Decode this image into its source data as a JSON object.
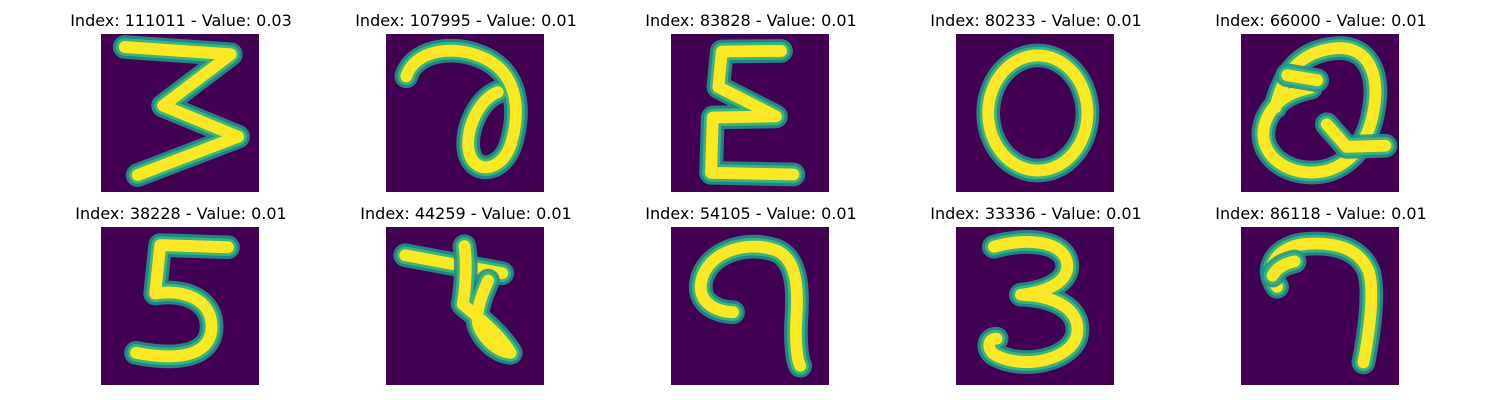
{
  "figure": {
    "background_color": "#440154",
    "stroke_color": "#fde725",
    "edge_color": "#35b779",
    "halo_color": "#21918c",
    "panels": [
      {
        "title": "Index: 111011 - Value: 0.03",
        "digit": "3"
      },
      {
        "title": "Index: 107995 - Value: 0.01",
        "digit": "a"
      },
      {
        "title": "Index: 83828 - Value: 0.01",
        "digit": "E"
      },
      {
        "title": "Index: 80233 - Value: 0.01",
        "digit": "0"
      },
      {
        "title": "Index: 66000 - Value: 0.01",
        "digit": "Q"
      },
      {
        "title": "Index: 38228 - Value: 0.01",
        "digit": "5"
      },
      {
        "title": "Index: 44259 - Value: 0.01",
        "digit": "t"
      },
      {
        "title": "Index: 54105 - Value: 0.01",
        "digit": "9"
      },
      {
        "title": "Index: 33336 - Value: 0.01",
        "digit": "3"
      },
      {
        "title": "Index: 86118 - Value: 0.01",
        "digit": "7"
      }
    ]
  }
}
